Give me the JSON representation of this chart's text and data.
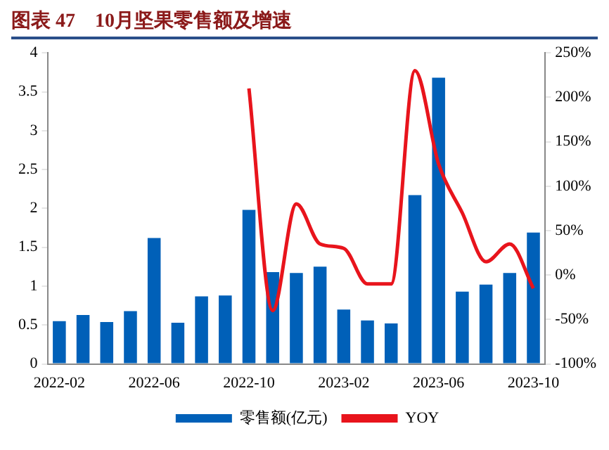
{
  "chart_data": {
    "type": "bar",
    "title": "图表 47　10月坚果零售额及增速",
    "categories": [
      "2022-02",
      null,
      null,
      null,
      "2022-06",
      null,
      null,
      null,
      "2022-10",
      null,
      null,
      null,
      "2023-02",
      null,
      null,
      null,
      "2023-06",
      null,
      null,
      null,
      "2023-10"
    ],
    "series": [
      {
        "name": "零售额(亿元)",
        "color": "#0060b8",
        "values": [
          0.55,
          0.63,
          0.54,
          0.68,
          1.62,
          0.53,
          0.87,
          0.88,
          1.98,
          1.18,
          1.17,
          1.25,
          0.7,
          0.56,
          0.52,
          2.17,
          3.68,
          0.93,
          1.02,
          1.17,
          1.69
        ]
      },
      {
        "name": "YOY",
        "type": "line",
        "axis": "y2",
        "color": "#e8141c",
        "values": [
          null,
          null,
          null,
          null,
          null,
          null,
          null,
          null,
          210,
          -40,
          80,
          35,
          30,
          -10,
          -10,
          230,
          125,
          70,
          15,
          35,
          -15
        ]
      }
    ],
    "ylim": [
      0,
      4
    ],
    "yticks": [
      0,
      0.5,
      1,
      1.5,
      2,
      2.5,
      3,
      3.5,
      4
    ],
    "y2lim": [
      -100,
      250
    ],
    "y2ticks": [
      {
        "value": -100,
        "label": "-100%"
      },
      {
        "value": -50,
        "label": "-50%"
      },
      {
        "value": 0,
        "label": "0%"
      },
      {
        "value": 50,
        "label": "50%"
      },
      {
        "value": 100,
        "label": "100%"
      },
      {
        "value": 150,
        "label": "150%"
      },
      {
        "value": 200,
        "label": "200%"
      },
      {
        "value": 250,
        "label": "250%"
      }
    ],
    "grid": false,
    "legend": "bottom",
    "marker": "none",
    "line_style": "solid"
  }
}
